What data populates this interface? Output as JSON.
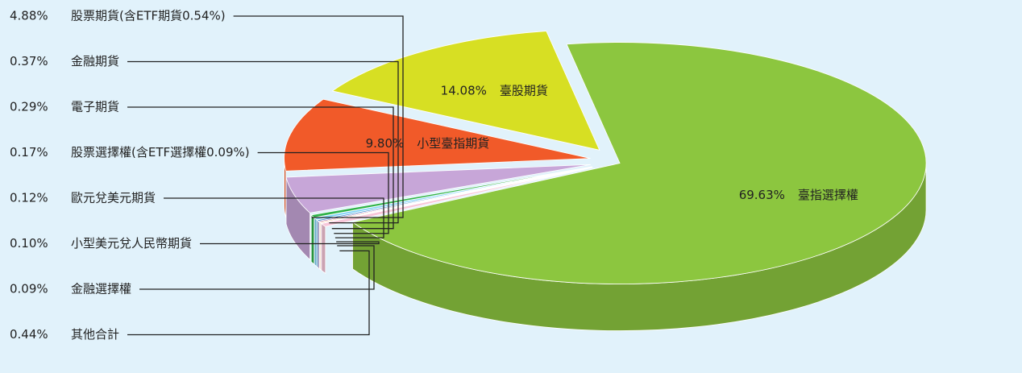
{
  "chart_data": {
    "type": "pie",
    "categories": [
      "臺指選擇權",
      "臺股期貨",
      "小型臺指期貨",
      "股票期貨(含ETF期貨0.54%)",
      "金融期貨",
      "電子期貨",
      "股票選擇權(含ETF選擇權0.09%)",
      "歐元兌美元期貨",
      "小型美元兌人民幣期貨",
      "金融選擇權",
      "其他合計"
    ],
    "values": [
      69.63,
      14.08,
      9.8,
      4.88,
      0.37,
      0.29,
      0.17,
      0.12,
      0.1,
      0.09,
      0.44
    ],
    "value_labels": [
      "69.63%",
      "14.08%",
      "9.80%",
      "4.88%",
      "0.37%",
      "0.29%",
      "0.17%",
      "0.12%",
      "0.10%",
      "0.09%",
      "0.44%"
    ],
    "colors": [
      "#8cc63f",
      "#d7df23",
      "#f15a29",
      "#c7a6d8",
      "#2fb34a",
      "#7fd3f7",
      "#3a8fd1",
      "#8e3b96",
      "#f7941d",
      "#f49ac1",
      "#f7c6d9"
    ]
  }
}
